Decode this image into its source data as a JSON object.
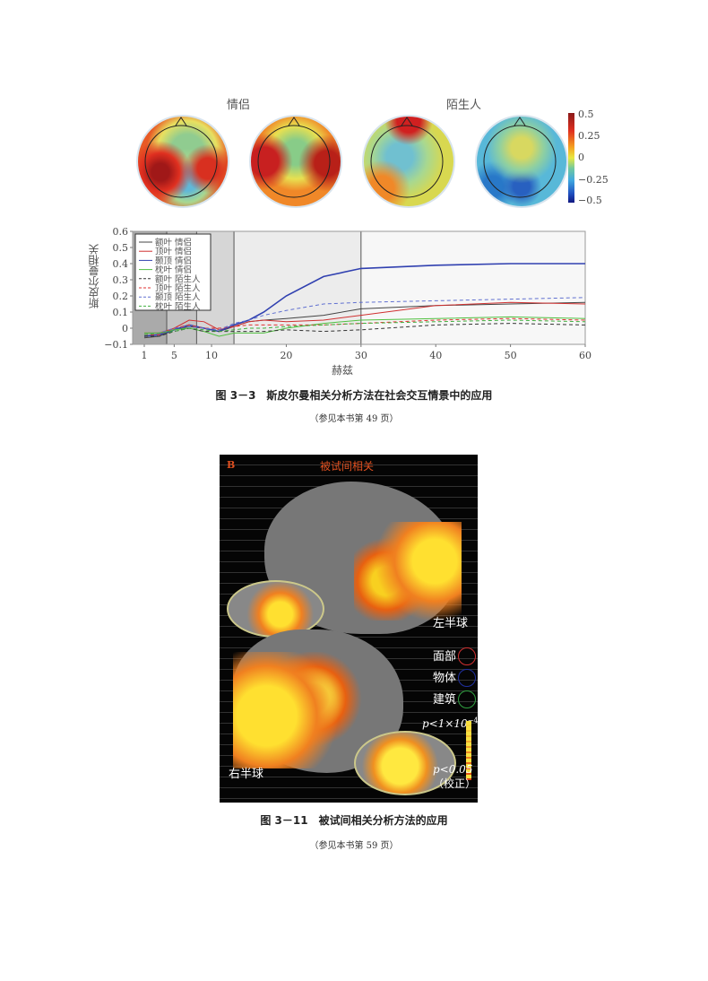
{
  "figure1": {
    "topomap_titles": [
      "情侣",
      "陌生人"
    ],
    "colorbar_ticks": [
      "0.5",
      "0.25",
      "0",
      "−0.25",
      "−0.5"
    ],
    "colorbar_colors": [
      "#8b1a1a",
      "#e03020",
      "#f5a020",
      "#e8e840",
      "#70c8a0",
      "#40a8e0",
      "#2050c0",
      "#101880"
    ],
    "caption": "图 3－3　斯皮尔曼相关分析方法在社会交互情景中的应用",
    "note": "（参见本书第 49 页）"
  },
  "chart_data": {
    "type": "line",
    "title": "",
    "xlabel": "赫兹",
    "ylabel": "斯皮尔曼相关",
    "xlim": [
      1,
      60
    ],
    "ylim": [
      -0.1,
      0.6
    ],
    "xticks": [
      1,
      5,
      10,
      20,
      30,
      40,
      50,
      60
    ],
    "yticks": [
      -0.1,
      0,
      0.1,
      0.2,
      0.3,
      0.4,
      0.5,
      0.6
    ],
    "ytick_labels": [
      "−0.1",
      "0",
      "0.1",
      "0.2",
      "0.3",
      "0.4",
      "0.5",
      "0.6"
    ],
    "band_boundaries": [
      4,
      8,
      13,
      30
    ],
    "legend_position": "top-left",
    "x": [
      1,
      3,
      5,
      7,
      9,
      11,
      13,
      15,
      17,
      20,
      25,
      30,
      40,
      50,
      60
    ],
    "series": [
      {
        "name": "额叶  情侣",
        "color": "#444444",
        "dash": false,
        "values": [
          -0.06,
          -0.05,
          -0.01,
          0.01,
          0.0,
          -0.02,
          0.01,
          0.04,
          0.05,
          0.06,
          0.08,
          0.12,
          0.14,
          0.15,
          0.16
        ]
      },
      {
        "name": "顶叶  情侣",
        "color": "#d03030",
        "dash": false,
        "values": [
          -0.03,
          -0.03,
          0.0,
          0.05,
          0.04,
          -0.01,
          0.01,
          0.04,
          0.05,
          0.04,
          0.05,
          0.08,
          0.14,
          0.16,
          0.15
        ]
      },
      {
        "name": "颞顶  情侣",
        "color": "#3040b0",
        "dash": false,
        "values": [
          -0.05,
          -0.04,
          -0.01,
          0.02,
          0.0,
          -0.02,
          0.02,
          0.05,
          0.1,
          0.2,
          0.32,
          0.37,
          0.39,
          0.4,
          0.4
        ]
      },
      {
        "name": "枕叶  情侣",
        "color": "#50c040",
        "dash": false,
        "values": [
          -0.03,
          -0.03,
          -0.01,
          0.0,
          -0.02,
          -0.05,
          -0.03,
          -0.03,
          -0.03,
          0.0,
          0.03,
          0.05,
          0.06,
          0.07,
          0.06
        ]
      },
      {
        "name": "额叶  陌生人",
        "color": "#333333",
        "dash": true,
        "values": [
          -0.05,
          -0.05,
          -0.02,
          0.0,
          -0.02,
          -0.02,
          -0.02,
          -0.02,
          -0.02,
          -0.01,
          -0.02,
          -0.01,
          0.02,
          0.03,
          0.02
        ]
      },
      {
        "name": "顶叶  陌生人",
        "color": "#e03030",
        "dash": true,
        "values": [
          -0.04,
          -0.04,
          0.0,
          0.02,
          0.0,
          0.0,
          0.01,
          0.02,
          0.02,
          0.02,
          0.02,
          0.03,
          0.05,
          0.06,
          0.05
        ]
      },
      {
        "name": "颞顶  陌生人",
        "color": "#6070d0",
        "dash": true,
        "values": [
          -0.04,
          -0.03,
          0.0,
          0.01,
          0.0,
          -0.01,
          0.03,
          0.05,
          0.08,
          0.11,
          0.15,
          0.16,
          0.17,
          0.18,
          0.19
        ]
      },
      {
        "name": "枕叶  陌生人",
        "color": "#40b040",
        "dash": true,
        "values": [
          -0.04,
          -0.03,
          -0.02,
          0.0,
          -0.01,
          -0.02,
          -0.01,
          0.0,
          0.0,
          0.01,
          0.02,
          0.03,
          0.04,
          0.05,
          0.04
        ]
      }
    ]
  },
  "figure2": {
    "panel_letter": "B",
    "title": "被试间相关",
    "left_hemisphere": "左半球",
    "right_hemisphere": "右半球",
    "legend": [
      {
        "label": "面部",
        "color": "#d03030"
      },
      {
        "label": "物体",
        "color": "#2030a0"
      },
      {
        "label": "建筑",
        "color": "#30a040"
      }
    ],
    "p_high": "p<1×10",
    "p_high_exp": "−4",
    "p_low": "p<0.05",
    "corrected": "（校正）",
    "caption": "图 3－11　被试间相关分析方法的应用",
    "note": "（参见本书第 59 页）"
  }
}
